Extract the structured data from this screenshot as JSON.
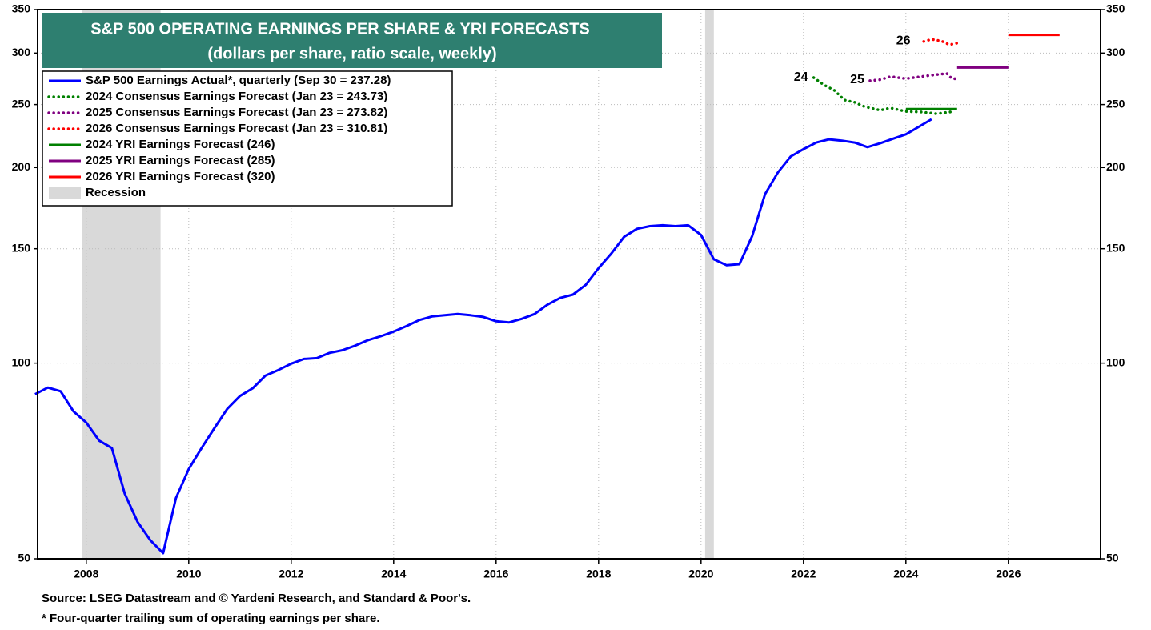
{
  "chart_data": {
    "type": "line",
    "title": "S&P 500 OPERATING EARNINGS PER SHARE & YRI FORECASTS",
    "subtitle": "(dollars per share, ratio scale, weekly)",
    "log_scale": true,
    "grid": true,
    "legend": "upper left",
    "xlim": [
      2007.05,
      2027.8
    ],
    "xticks": [
      2008,
      2010,
      2012,
      2014,
      2016,
      2018,
      2020,
      2022,
      2024,
      2026
    ],
    "ylim": [
      50,
      350
    ],
    "yticks": [
      50,
      100,
      150,
      200,
      250,
      300,
      350
    ],
    "y2lim": [
      50,
      350
    ],
    "y2ticks": [
      50,
      100,
      150,
      200,
      250,
      300,
      350
    ],
    "series": [
      {
        "name": "S&P 500 Earnings Actual*, quarterly (Sep 30 = 237.28)",
        "color": "#0000ff",
        "dash": "solid",
        "x": [
          2007.0,
          2007.25,
          2007.5,
          2007.75,
          2008.0,
          2008.25,
          2008.5,
          2008.75,
          2009.0,
          2009.25,
          2009.5,
          2009.75,
          2010.0,
          2010.25,
          2010.5,
          2010.75,
          2011.0,
          2011.25,
          2011.5,
          2011.75,
          2012.0,
          2012.25,
          2012.5,
          2012.75,
          2013.0,
          2013.25,
          2013.5,
          2013.75,
          2014.0,
          2014.25,
          2014.5,
          2014.75,
          2015.0,
          2015.25,
          2015.5,
          2015.75,
          2016.0,
          2016.25,
          2016.5,
          2016.75,
          2017.0,
          2017.25,
          2017.5,
          2017.75,
          2018.0,
          2018.25,
          2018.5,
          2018.75,
          2019.0,
          2019.25,
          2019.5,
          2019.75,
          2020.0,
          2020.25,
          2020.5,
          2020.75,
          2021.0,
          2021.25,
          2021.5,
          2021.75,
          2022.0,
          2022.25,
          2022.5,
          2022.75,
          2023.0,
          2023.25,
          2023.5,
          2023.75,
          2024.0,
          2024.25,
          2024.5
        ],
        "values": [
          89.6,
          91.7,
          90.5,
          84.3,
          81,
          76,
          74,
          63,
          57,
          53.4,
          51,
          62,
          68.7,
          74,
          79.4,
          85,
          89,
          91.5,
          95.7,
          97.6,
          99.8,
          101.5,
          101.8,
          103.7,
          104.7,
          106.4,
          108.5,
          110,
          111.8,
          114,
          116.5,
          118,
          118.5,
          119,
          118.5,
          117.8,
          116,
          115.5,
          117,
          119,
          123,
          126,
          127.5,
          132,
          140,
          147.5,
          156.5,
          161,
          162.5,
          163,
          162.5,
          163,
          157.5,
          144.5,
          141.5,
          142,
          157,
          182,
          196.5,
          208,
          213.5,
          218.5,
          221,
          220,
          218.5,
          215,
          218,
          221.5,
          225,
          231,
          237.28
        ]
      },
      {
        "name": "2024 Consensus Earnings Forecast (Jan 23 = 243.73)",
        "color": "#008000",
        "dash": "dotted",
        "x": [
          2022.2,
          2022.4,
          2022.6,
          2022.8,
          2023.0,
          2023.2,
          2023.5,
          2023.7,
          2024.0,
          2024.3,
          2024.6,
          2024.9
        ],
        "values": [
          275,
          268,
          263,
          254,
          252,
          248,
          245,
          247,
          244,
          243.5,
          242,
          243.73
        ]
      },
      {
        "name": "2025 Consensus Earnings Forecast (Jan 23 = 273.82)",
        "color": "#800080",
        "dash": "dotted",
        "x": [
          2023.3,
          2023.5,
          2023.7,
          2024.0,
          2024.3,
          2024.6,
          2024.8,
          2024.9,
          2025.0
        ],
        "values": [
          272,
          273,
          276,
          274,
          276,
          278,
          279,
          274,
          273.82
        ]
      },
      {
        "name": "2026 Consensus Earnings Forecast (Jan 23 = 310.81)",
        "color": "#ff0000",
        "dash": "dotted",
        "x": [
          2024.35,
          2024.5,
          2024.7,
          2024.85,
          2025.0
        ],
        "values": [
          312.6,
          315,
          313,
          309,
          310.81
        ]
      },
      {
        "name": "2024 YRI Earnings Forecast (246)",
        "color": "#008000",
        "dash": "solid",
        "x": [
          2024,
          2025
        ],
        "values": [
          246,
          246
        ]
      },
      {
        "name": "2025 YRI Earnings Forecast (285)",
        "color": "#800080",
        "dash": "solid",
        "x": [
          2025,
          2026
        ],
        "values": [
          285,
          285
        ]
      },
      {
        "name": "2026 YRI Earnings Forecast (320)",
        "color": "#ff0000",
        "dash": "solid",
        "x": [
          2026,
          2027
        ],
        "values": [
          320,
          320
        ]
      }
    ],
    "recession": {
      "name": "Recession",
      "color": "#d9d9d9",
      "spans": [
        [
          2007.92,
          2009.45
        ],
        [
          2020.08,
          2020.25
        ]
      ]
    },
    "annotations": [
      {
        "text": "24",
        "color": "#008000",
        "x": 2021.95,
        "y": 275
      },
      {
        "text": "25",
        "color": "#800080",
        "x": 2023.05,
        "y": 273
      },
      {
        "text": "26",
        "color": "#ff0000",
        "x": 2023.95,
        "y": 313
      }
    ],
    "notes": [
      "Source: LSEG Datastream and © Yardeni Research, and Standard & Poor's.",
      "* Four-quarter trailing sum of operating earnings per share."
    ]
  }
}
